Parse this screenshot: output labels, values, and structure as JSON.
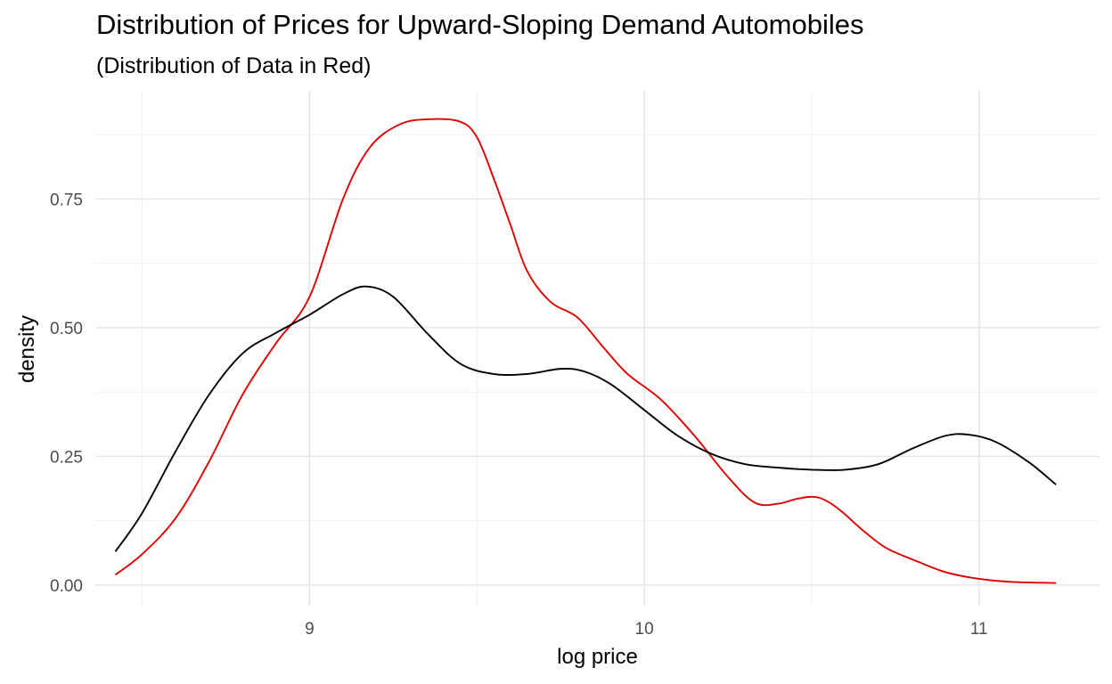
{
  "chart_data": {
    "type": "line",
    "title": "Distribution of Prices for Upward-Sloping Demand Automobiles",
    "subtitle": "(Distribution of Data in Red)",
    "xlabel": "log price",
    "ylabel": "density",
    "xlim": [
      8.36,
      11.36
    ],
    "ylim": [
      -0.04,
      0.96
    ],
    "x_ticks": [
      9,
      10,
      11
    ],
    "x_tick_labels": [
      "9",
      "10",
      "11"
    ],
    "y_ticks": [
      0,
      0.25,
      0.5,
      0.75
    ],
    "y_tick_labels": [
      "0.00",
      "0.25",
      "0.50",
      "0.75"
    ],
    "grid": true,
    "series": [
      {
        "color": "#000000",
        "x": [
          8.42,
          8.5,
          8.6,
          8.7,
          8.8,
          8.9,
          9.0,
          9.1,
          9.17,
          9.25,
          9.35,
          9.45,
          9.55,
          9.65,
          9.75,
          9.82,
          9.9,
          10.0,
          10.1,
          10.2,
          10.3,
          10.4,
          10.5,
          10.6,
          10.7,
          10.8,
          10.9,
          10.97,
          11.05,
          11.15,
          11.23
        ],
        "y": [
          0.065,
          0.14,
          0.26,
          0.37,
          0.45,
          0.49,
          0.525,
          0.565,
          0.58,
          0.56,
          0.49,
          0.43,
          0.41,
          0.41,
          0.42,
          0.415,
          0.39,
          0.34,
          0.29,
          0.255,
          0.235,
          0.228,
          0.224,
          0.224,
          0.235,
          0.265,
          0.29,
          0.292,
          0.278,
          0.238,
          0.195
        ]
      },
      {
        "color": "#e00000",
        "x": [
          8.42,
          8.5,
          8.6,
          8.7,
          8.8,
          8.9,
          9.0,
          9.1,
          9.18,
          9.27,
          9.36,
          9.45,
          9.5,
          9.55,
          9.6,
          9.65,
          9.72,
          9.8,
          9.88,
          9.95,
          10.05,
          10.15,
          10.25,
          10.33,
          10.4,
          10.46,
          10.52,
          10.58,
          10.65,
          10.72,
          10.8,
          10.9,
          11.0,
          11.1,
          11.23
        ],
        "y": [
          0.02,
          0.06,
          0.13,
          0.24,
          0.37,
          0.47,
          0.56,
          0.75,
          0.85,
          0.895,
          0.905,
          0.9,
          0.87,
          0.79,
          0.7,
          0.61,
          0.55,
          0.52,
          0.46,
          0.41,
          0.36,
          0.29,
          0.21,
          0.16,
          0.158,
          0.168,
          0.17,
          0.148,
          0.108,
          0.073,
          0.05,
          0.025,
          0.012,
          0.006,
          0.004
        ]
      }
    ]
  }
}
